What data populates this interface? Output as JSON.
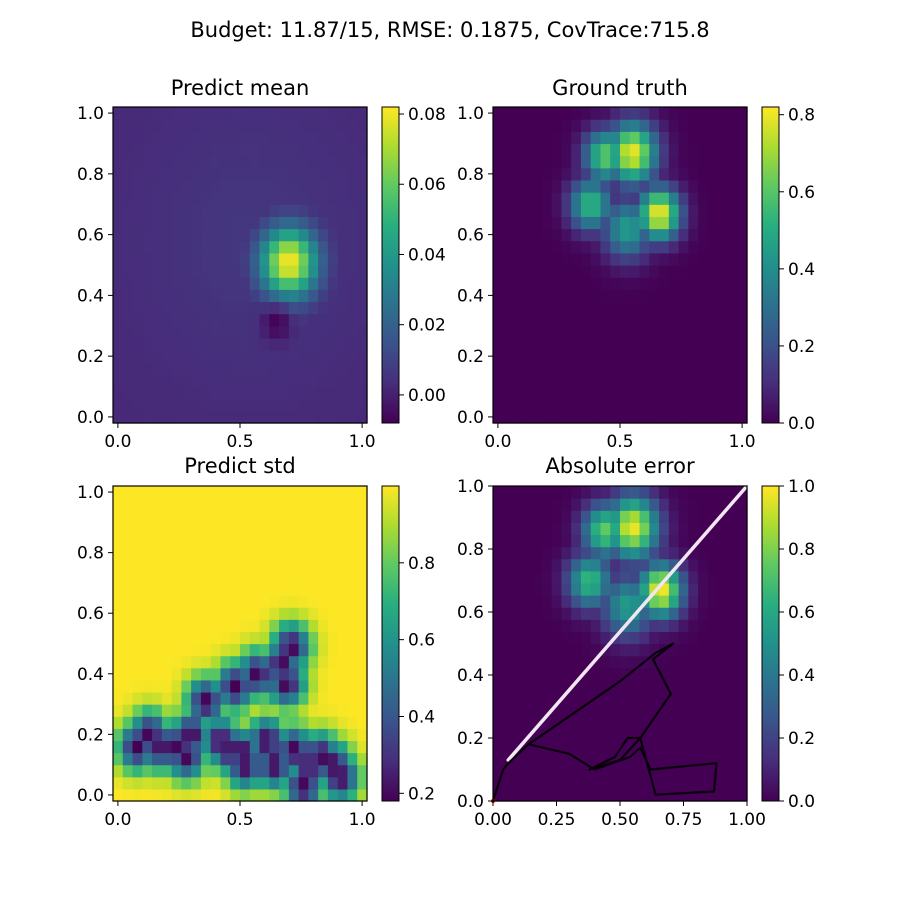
{
  "figure": {
    "suptitle": "Budget: 11.87/15,  RMSE: 0.1875, CovTrace:715.8"
  },
  "chart_data": [
    {
      "type": "heatmap",
      "title": "Predict mean",
      "colormap": "viridis",
      "xlim": [
        -0.02,
        1.02
      ],
      "ylim": [
        -0.02,
        1.02
      ],
      "xticks": [
        "0.0",
        "0.5",
        "1.0"
      ],
      "yticks": [
        "0.0",
        "0.2",
        "0.4",
        "0.6",
        "0.8",
        "1.0"
      ],
      "colorbar": {
        "min": -0.008,
        "max": 0.082,
        "ticks": [
          "0.00",
          "0.02",
          "0.04",
          "0.06",
          "0.08"
        ]
      },
      "features": [
        {
          "kind": "blob",
          "x": 0.7,
          "y": 0.51,
          "value": 0.082,
          "spread": 0.08
        },
        {
          "kind": "halo",
          "x": 0.55,
          "y": 0.58,
          "value": 0.006,
          "spread": 0.33
        },
        {
          "kind": "dip",
          "x": 0.65,
          "y": 0.31,
          "value": -0.008,
          "spread": 0.04
        }
      ],
      "background": 0.002
    },
    {
      "type": "heatmap",
      "title": "Ground truth",
      "colormap": "viridis",
      "xlim": [
        -0.02,
        1.02
      ],
      "ylim": [
        -0.02,
        1.02
      ],
      "xticks": [
        "0.0",
        "0.5",
        "1.0"
      ],
      "yticks": [
        "0.0",
        "0.2",
        "0.4",
        "0.6",
        "0.8",
        "1.0"
      ],
      "colorbar": {
        "min": 0.0,
        "max": 0.82,
        "ticks": [
          "0.0",
          "0.2",
          "0.4",
          "0.6",
          "0.8"
        ]
      },
      "features": [
        {
          "kind": "blob",
          "x": 0.55,
          "y": 0.87,
          "value": 0.8,
          "spread": 0.07
        },
        {
          "kind": "blob",
          "x": 0.44,
          "y": 0.86,
          "value": 0.62,
          "spread": 0.06
        },
        {
          "kind": "blob",
          "x": 0.66,
          "y": 0.67,
          "value": 0.82,
          "spread": 0.06
        },
        {
          "kind": "blob",
          "x": 0.38,
          "y": 0.7,
          "value": 0.55,
          "spread": 0.06
        },
        {
          "kind": "blob",
          "x": 0.53,
          "y": 0.62,
          "value": 0.45,
          "spread": 0.07
        }
      ],
      "background": 0.0
    },
    {
      "type": "heatmap",
      "title": "Predict std",
      "colormap": "viridis",
      "xlim": [
        -0.02,
        1.02
      ],
      "ylim": [
        -0.02,
        1.02
      ],
      "xticks": [
        "0.0",
        "0.5",
        "1.0"
      ],
      "yticks": [
        "0.0",
        "0.2",
        "0.4",
        "0.6",
        "0.8",
        "1.0"
      ],
      "colorbar": {
        "min": 0.18,
        "max": 1.0,
        "ticks": [
          "0.2",
          "0.4",
          "0.6",
          "0.8"
        ]
      },
      "sample_points": [
        [
          0.08,
          0.16
        ],
        [
          0.13,
          0.2
        ],
        [
          0.18,
          0.16
        ],
        [
          0.23,
          0.16
        ],
        [
          0.28,
          0.13
        ],
        [
          0.36,
          0.31
        ],
        [
          0.42,
          0.18
        ],
        [
          0.46,
          0.15
        ],
        [
          0.51,
          0.14
        ],
        [
          0.52,
          0.1
        ],
        [
          0.61,
          0.18
        ],
        [
          0.64,
          0.1
        ],
        [
          0.67,
          0.43
        ],
        [
          0.71,
          0.49
        ],
        [
          0.69,
          0.37
        ],
        [
          0.72,
          0.15
        ],
        [
          0.78,
          0.1
        ],
        [
          0.83,
          0.13
        ],
        [
          0.88,
          0.1
        ],
        [
          0.91,
          0.06
        ],
        [
          0.76,
          0.03
        ],
        [
          0.57,
          0.4
        ],
        [
          0.48,
          0.36
        ],
        [
          0.3,
          0.2
        ]
      ]
    },
    {
      "type": "heatmap",
      "title": "Absolute error",
      "colormap": "viridis",
      "xlim": [
        0.0,
        1.0
      ],
      "ylim": [
        0.0,
        1.0
      ],
      "xticks": [
        "0.00",
        "0.25",
        "0.50",
        "0.75",
        "1.00"
      ],
      "yticks": [
        "0.0",
        "0.2",
        "0.4",
        "0.6",
        "0.8",
        "1.0"
      ],
      "colorbar": {
        "min": 0.0,
        "max": 1.0,
        "ticks": [
          "0.0",
          "0.2",
          "0.4",
          "0.6",
          "0.8",
          "1.0"
        ]
      },
      "white_line": [
        [
          0.06,
          0.13
        ],
        [
          1.0,
          1.0
        ]
      ],
      "path": [
        [
          0.0,
          0.0
        ],
        [
          0.04,
          0.1
        ],
        [
          0.06,
          0.12
        ],
        [
          0.14,
          0.18
        ],
        [
          0.3,
          0.15
        ],
        [
          0.4,
          0.1
        ],
        [
          0.54,
          0.14
        ],
        [
          0.58,
          0.17
        ],
        [
          0.62,
          0.1
        ],
        [
          0.88,
          0.12
        ],
        [
          0.87,
          0.03
        ],
        [
          0.64,
          0.02
        ],
        [
          0.58,
          0.2
        ],
        [
          0.53,
          0.2
        ],
        [
          0.48,
          0.14
        ],
        [
          0.38,
          0.1
        ],
        [
          0.5,
          0.13
        ],
        [
          0.58,
          0.2
        ],
        [
          0.7,
          0.34
        ],
        [
          0.63,
          0.45
        ],
        [
          0.71,
          0.5
        ],
        [
          0.64,
          0.47
        ],
        [
          0.5,
          0.38
        ],
        [
          0.14,
          0.18
        ]
      ]
    }
  ]
}
